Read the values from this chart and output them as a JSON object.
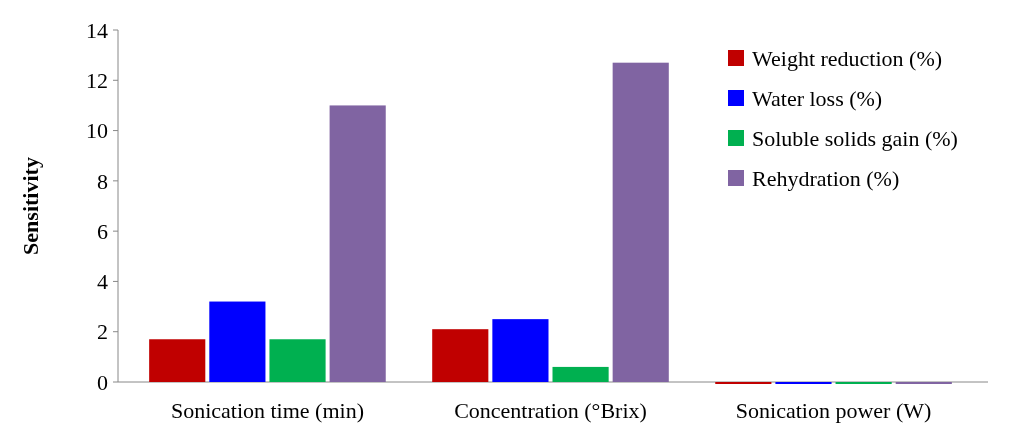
{
  "chart_data": {
    "type": "bar",
    "ylabel": "Sensitivity",
    "categories": [
      "Sonication time (min)",
      "Concentration (°Brix)",
      "Sonication power (W)"
    ],
    "series": [
      {
        "name": "Weight reduction (%)",
        "color": "#c00000",
        "values": [
          1.7,
          2.1,
          0
        ]
      },
      {
        "name": "Water loss (%)",
        "color": "#0000ff",
        "values": [
          3.2,
          2.5,
          0
        ]
      },
      {
        "name": "Soluble solids gain (%)",
        "color": "#00b050",
        "values": [
          1.7,
          0.6,
          0
        ]
      },
      {
        "name": "Rehydration (%)",
        "color": "#8064a2",
        "values": [
          11.0,
          12.7,
          0
        ]
      }
    ],
    "ylim": [
      0,
      14
    ],
    "yticks": [
      0,
      2,
      4,
      6,
      8,
      10,
      12,
      14
    ],
    "legend": "top right",
    "grid": false
  }
}
